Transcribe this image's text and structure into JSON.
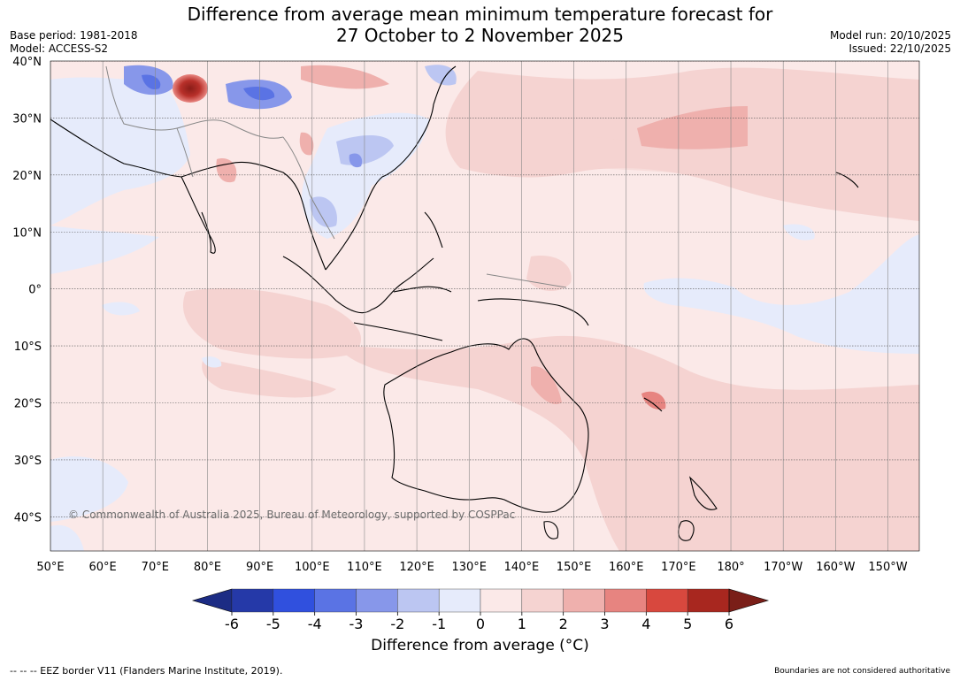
{
  "title_line1": "Difference from average mean minimum temperature forecast for",
  "title_line2": "27 October to 2 November 2025",
  "meta_left": [
    "Base period: 1981-2018",
    "Model: ACCESS-S2"
  ],
  "meta_right": [
    "Model run: 20/10/2025",
    "Issued: 22/10/2025"
  ],
  "map": {
    "lon_min": 50,
    "lon_max": 216,
    "lat_min": -46,
    "lat_max": 40,
    "lat_labels": [
      {
        "lat": 40,
        "label": "40°N"
      },
      {
        "lat": 30,
        "label": "30°N"
      },
      {
        "lat": 20,
        "label": "20°N"
      },
      {
        "lat": 10,
        "label": "10°N"
      },
      {
        "lat": 0,
        "label": "0°"
      },
      {
        "lat": -10,
        "label": "10°S"
      },
      {
        "lat": -20,
        "label": "20°S"
      },
      {
        "lat": -30,
        "label": "30°S"
      },
      {
        "lat": -40,
        "label": "40°S"
      }
    ],
    "lon_labels": [
      {
        "lon": 50,
        "label": "50°E"
      },
      {
        "lon": 60,
        "label": "60°E"
      },
      {
        "lon": 70,
        "label": "70°E"
      },
      {
        "lon": 80,
        "label": "80°E"
      },
      {
        "lon": 90,
        "label": "90°E"
      },
      {
        "lon": 100,
        "label": "100°E"
      },
      {
        "lon": 110,
        "label": "110°E"
      },
      {
        "lon": 120,
        "label": "120°E"
      },
      {
        "lon": 130,
        "label": "130°E"
      },
      {
        "lon": 140,
        "label": "140°E"
      },
      {
        "lon": 150,
        "label": "150°E"
      },
      {
        "lon": 160,
        "label": "160°E"
      },
      {
        "lon": 170,
        "label": "170°E"
      },
      {
        "lon": 180,
        "label": "180°"
      },
      {
        "lon": 190,
        "label": "170°W"
      },
      {
        "lon": 200,
        "label": "160°W"
      },
      {
        "lon": 210,
        "label": "150°W"
      }
    ],
    "copyright": "© Commonwealth of Australia 2025, Bureau of Meteorology, supported by COSPPac"
  },
  "colorbar": {
    "ticks": [
      "-6",
      "-5",
      "-4",
      "-3",
      "-2",
      "-1",
      "0",
      "1",
      "2",
      "3",
      "4",
      "5",
      "6"
    ],
    "colors": [
      "#2539a8",
      "#3050de",
      "#5a73e4",
      "#8797ea",
      "#bcc6f2",
      "#e6ebfb",
      "#fbe9e8",
      "#f5d3d1",
      "#efb0ad",
      "#e78480",
      "#d8483e",
      "#a8271f"
    ],
    "under_color": "#1c2c84",
    "over_color": "#7a1e18",
    "label": "Difference from average (°C)"
  },
  "footer_left": "--  --  -- EEZ border V11 (Flanders Marine Institute, 2019).",
  "footer_right": "Boundaries are not considered authoritative"
}
